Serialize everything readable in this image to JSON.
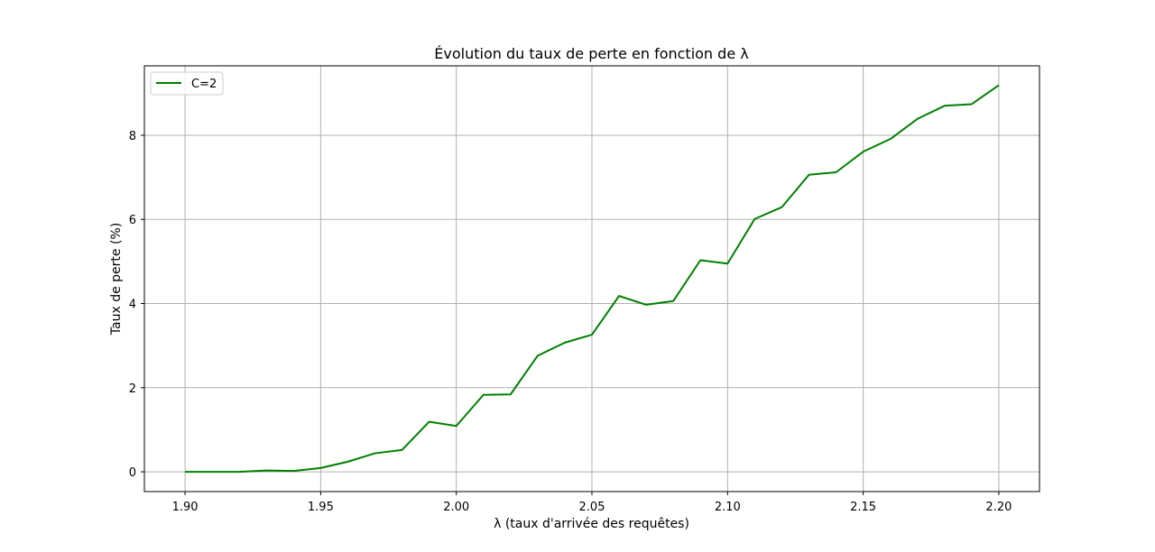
{
  "chart_data": {
    "type": "line",
    "title": "Évolution du taux de perte en fonction de λ",
    "xlabel": "λ (taux d'arrivée des requêtes)",
    "ylabel": "Taux de perte (%)",
    "xlim": [
      1.885,
      2.215
    ],
    "ylim": [
      -0.47,
      9.65
    ],
    "xticks": [
      1.9,
      1.95,
      2.0,
      2.05,
      2.1,
      2.15,
      2.2
    ],
    "xtick_labels": [
      "1.90",
      "1.95",
      "2.00",
      "2.05",
      "2.10",
      "2.15",
      "2.20"
    ],
    "yticks": [
      0,
      2,
      4,
      6,
      8
    ],
    "ytick_labels": [
      "0",
      "2",
      "4",
      "6",
      "8"
    ],
    "grid": true,
    "legend_position": "top-left",
    "series": [
      {
        "name": "C=2",
        "color": "#008000",
        "x": [
          1.9,
          1.91,
          1.92,
          1.93,
          1.94,
          1.95,
          1.96,
          1.97,
          1.98,
          1.99,
          2.0,
          2.01,
          2.02,
          2.03,
          2.04,
          2.05,
          2.06,
          2.07,
          2.08,
          2.09,
          2.1,
          2.11,
          2.12,
          2.13,
          2.14,
          2.15,
          2.16,
          2.17,
          2.18,
          2.19,
          2.2
        ],
        "y": [
          0.0,
          0.0,
          0.0,
          0.03,
          0.02,
          0.09,
          0.24,
          0.44,
          0.52,
          1.19,
          1.09,
          1.83,
          1.84,
          2.76,
          3.07,
          3.26,
          4.18,
          3.97,
          4.06,
          5.03,
          4.95,
          6.01,
          6.29,
          7.06,
          7.12,
          7.61,
          7.91,
          8.39,
          8.7,
          8.74,
          9.19
        ]
      }
    ]
  }
}
